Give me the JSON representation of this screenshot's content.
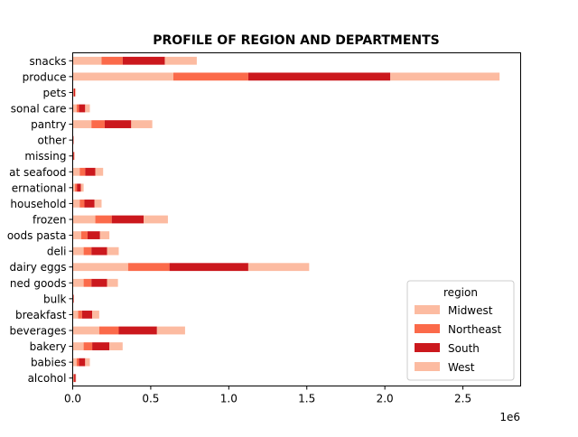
{
  "chart_data": {
    "type": "bar",
    "orientation": "horizontal",
    "stacked": true,
    "title": "PROFILE OF REGION AND DEPARTMENTS",
    "xlabel": "",
    "ylabel": "",
    "x_offset_label": "1e6",
    "xlim": [
      0,
      2870000
    ],
    "xticks": [
      0,
      500000,
      1000000,
      1500000,
      2000000,
      2500000
    ],
    "xtick_labels": [
      "0.0",
      "0.5",
      "1.0",
      "1.5",
      "2.0",
      "2.5"
    ],
    "grid": false,
    "legend": {
      "title": "region",
      "placement": "lower-right"
    },
    "categories": [
      "alcohol",
      "babies",
      "bakery",
      "beverages",
      "breakfast",
      "bulk",
      "canned goods",
      "dairy eggs",
      "deli",
      "dry goods pasta",
      "frozen",
      "household",
      "international",
      "meat seafood",
      "missing",
      "other",
      "pantry",
      "personal care",
      "pets",
      "produce",
      "snacks"
    ],
    "category_labels": [
      "alcohol",
      "babies",
      "bakery",
      "beverages",
      "breakfast",
      "bulk",
      "ned goods",
      "dairy eggs",
      "deli",
      "oods pasta",
      "frozen",
      "household",
      "ernational",
      "at seafood",
      "missing",
      "other",
      "pantry",
      "sonal care",
      "pets",
      "produce",
      "snacks"
    ],
    "series": [
      {
        "name": "Midwest",
        "color": "#fcbba1",
        "values": [
          5000,
          25000,
          70000,
          170000,
          35000,
          2000,
          70000,
          355000,
          70000,
          55000,
          145000,
          45000,
          15000,
          45000,
          3000,
          1500,
          120000,
          25000,
          5000,
          645000,
          185000
        ]
      },
      {
        "name": "Northeast",
        "color": "#fb6a4a",
        "values": [
          4000,
          15000,
          55000,
          125000,
          25000,
          1500,
          50000,
          265000,
          50000,
          40000,
          105000,
          30000,
          12000,
          35000,
          2000,
          1200,
          85000,
          15000,
          3000,
          480000,
          135000
        ]
      },
      {
        "name": "South",
        "color": "#cb181d",
        "values": [
          10000,
          40000,
          110000,
          245000,
          65000,
          3000,
          100000,
          505000,
          100000,
          80000,
          205000,
          65000,
          25000,
          65000,
          5000,
          2500,
          170000,
          40000,
          7000,
          910000,
          270000
        ]
      },
      {
        "name": "West",
        "color": "#fcbba1",
        "values": [
          3000,
          30000,
          85000,
          180000,
          45000,
          2000,
          70000,
          390000,
          75000,
          60000,
          155000,
          45000,
          18000,
          50000,
          3000,
          1500,
          135000,
          30000,
          6000,
          700000,
          205000
        ]
      }
    ]
  }
}
